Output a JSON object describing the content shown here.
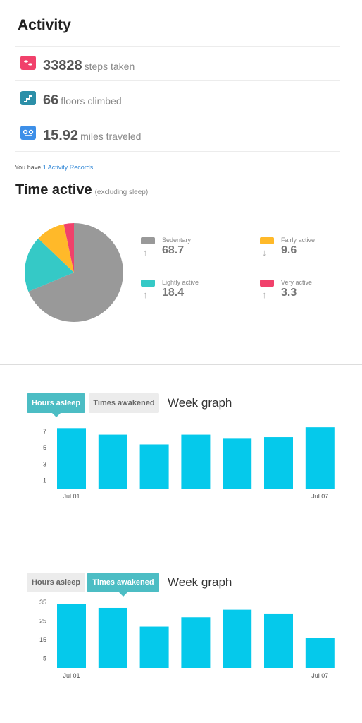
{
  "activity": {
    "title": "Activity",
    "stats": [
      {
        "value": "33828",
        "label": "steps taken",
        "color": "#f1416b",
        "icon": "steps-icon"
      },
      {
        "value": "66",
        "label": "floors climbed",
        "color": "#2c8fa8",
        "icon": "stairs-icon"
      },
      {
        "value": "15.92",
        "label": "miles traveled",
        "color": "#3d8fe8",
        "icon": "distance-icon"
      }
    ],
    "records_prefix": "You have",
    "records_link": "1 Activity Records"
  },
  "time_active": {
    "title": "Time active",
    "subtitle": "(excluding sleep)",
    "legend": [
      {
        "label": "Sedentary",
        "value": "68.7",
        "arrow": "↑",
        "color": "#999999"
      },
      {
        "label": "Fairly active",
        "value": "9.6",
        "arrow": "↓",
        "color": "#ffb929"
      },
      {
        "label": "Lightly active",
        "value": "18.4",
        "arrow": "↑",
        "color": "#35c9c6"
      },
      {
        "label": "Very active",
        "value": "3.3",
        "arrow": "↑",
        "color": "#f1416b"
      }
    ]
  },
  "sleep_panel": {
    "tab_hours": "Hours asleep",
    "tab_awakened": "Times awakened",
    "week_title": "Week graph"
  },
  "chart_data": [
    {
      "type": "pie",
      "categories": [
        "Sedentary",
        "Lightly active",
        "Fairly active",
        "Very active"
      ],
      "values": [
        68.7,
        18.4,
        9.6,
        3.3
      ],
      "colors": [
        "#999999",
        "#35c9c6",
        "#ffb929",
        "#f1416b"
      ]
    },
    {
      "type": "bar",
      "title": "Week graph",
      "categories": [
        "Jul 01",
        "",
        "",
        "",
        "",
        "",
        "Jul 07"
      ],
      "values": [
        7.4,
        6.6,
        5.4,
        6.6,
        6.1,
        6.3,
        7.5
      ],
      "yticks": [
        1,
        3,
        5,
        7
      ],
      "ylim": [
        0,
        7.6
      ],
      "color": "#05c9eb"
    },
    {
      "type": "bar",
      "title": "Week graph",
      "categories": [
        "Jul 01",
        "",
        "",
        "",
        "",
        "",
        "Jul 07"
      ],
      "values": [
        34,
        32,
        22,
        27,
        31,
        29,
        16
      ],
      "yticks": [
        5,
        15,
        25,
        35
      ],
      "ylim": [
        0,
        35
      ],
      "color": "#05c9eb"
    }
  ]
}
